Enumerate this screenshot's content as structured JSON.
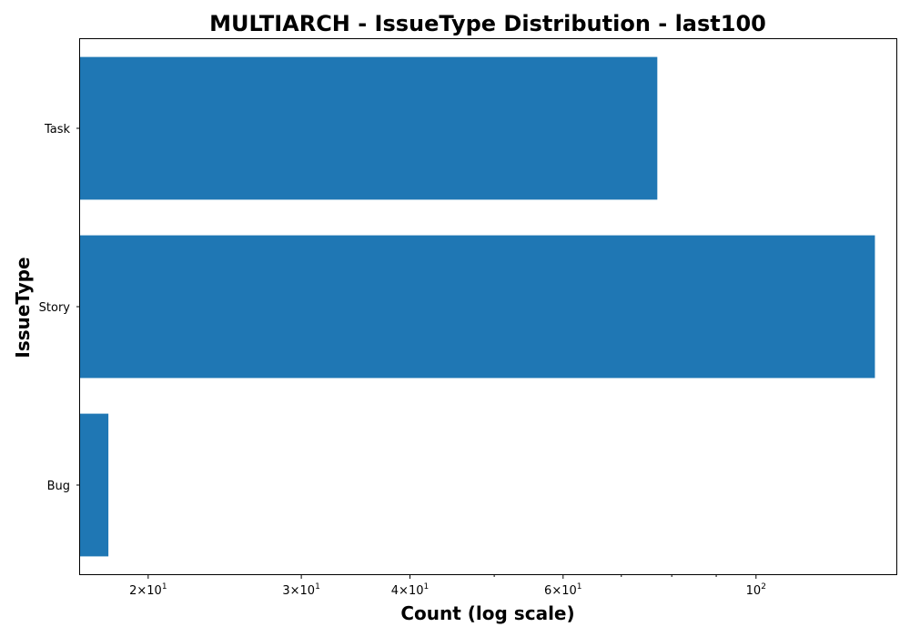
{
  "chart_data": {
    "type": "bar",
    "orientation": "horizontal",
    "title": "MULTIARCH - IssueType Distribution - last100",
    "xlabel": "Count (log scale)",
    "ylabel": "IssueType",
    "x_scale": "log",
    "xlim": [
      16.7,
      145
    ],
    "categories": [
      "Task",
      "Story",
      "Bug"
    ],
    "values": [
      77,
      137,
      18
    ],
    "bar_color": "#1f77b4",
    "x_ticks": [
      {
        "value": 20,
        "base": "2×10",
        "exp": "1"
      },
      {
        "value": 30,
        "base": "3×10",
        "exp": "1"
      },
      {
        "value": 40,
        "base": "4×10",
        "exp": "1"
      },
      {
        "value": 60,
        "base": "6×10",
        "exp": "1"
      },
      {
        "value": 100,
        "base": "10",
        "exp": "2"
      }
    ],
    "x_minor_ticks": [
      50,
      70,
      80,
      90
    ],
    "grid": false,
    "legend": "none"
  }
}
